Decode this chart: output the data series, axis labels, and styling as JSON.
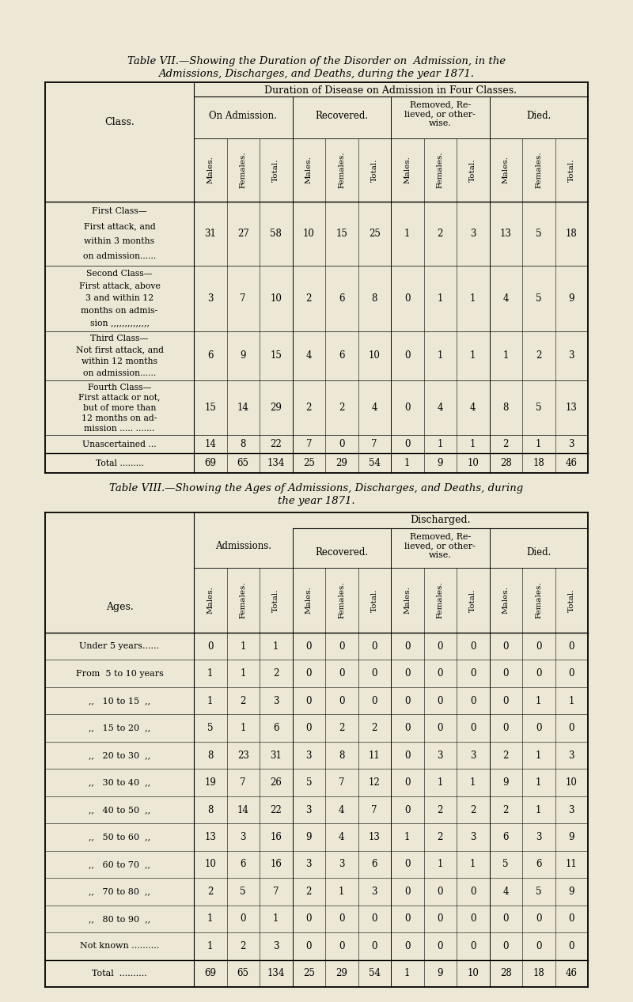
{
  "bg_color": "#ede8d5",
  "table7_title_line1": "Table VII.—Showing the Duration of the Disorder on  Admission, in the",
  "table7_title_line2": "Admissions, Discharges, and Deaths, during the year 1871.",
  "table8_title_line1": "Table VIII.—Showing the Ages of Admissions, Discharges, and Deaths, during",
  "table8_title_line2": "the year 1871.",
  "table7_rows": [
    {
      "label_lines": [
        "First Class—",
        "First attack, and",
        "within 3 months",
        "on admission......"
      ],
      "values": [
        31,
        27,
        58,
        10,
        15,
        25,
        1,
        2,
        3,
        13,
        5,
        18
      ]
    },
    {
      "label_lines": [
        "Second Class—",
        "First attack, above",
        "3 and within 12",
        "months on admis-",
        "sion ,,,,,,,,,,,,,,"
      ],
      "values": [
        3,
        7,
        10,
        2,
        6,
        8,
        0,
        1,
        1,
        4,
        5,
        9
      ]
    },
    {
      "label_lines": [
        "Third Class—",
        "Not first attack, and",
        "within 12 months",
        "on admission......"
      ],
      "values": [
        6,
        9,
        15,
        4,
        6,
        10,
        0,
        1,
        1,
        1,
        2,
        3
      ]
    },
    {
      "label_lines": [
        "Fourth Class—",
        "First attack or not,",
        "but of more than",
        "12 months on ad-",
        "mission ..... ......."
      ],
      "values": [
        15,
        14,
        29,
        2,
        2,
        4,
        0,
        4,
        4,
        8,
        5,
        13
      ]
    },
    {
      "label_lines": [
        "Unascertained ..."
      ],
      "values": [
        14,
        8,
        22,
        7,
        0,
        7,
        0,
        1,
        1,
        2,
        1,
        3
      ]
    },
    {
      "label_lines": [
        "Total ........."
      ],
      "values": [
        69,
        65,
        134,
        25,
        29,
        54,
        1,
        9,
        10,
        28,
        18,
        46
      ],
      "is_total": true
    }
  ],
  "table8_rows": [
    {
      "label": "Under 5 years......",
      "values": [
        0,
        1,
        1,
        0,
        0,
        0,
        0,
        0,
        0,
        0,
        0,
        0
      ]
    },
    {
      "label": "From  5 to 10 years",
      "values": [
        1,
        1,
        2,
        0,
        0,
        0,
        0,
        0,
        0,
        0,
        0,
        0
      ]
    },
    {
      "label": ",,   10 to 15  ,,",
      "values": [
        1,
        2,
        3,
        0,
        0,
        0,
        0,
        0,
        0,
        0,
        1,
        1
      ]
    },
    {
      "label": ",,   15 to 20  ,,",
      "values": [
        5,
        1,
        6,
        0,
        2,
        2,
        0,
        0,
        0,
        0,
        0,
        0
      ]
    },
    {
      "label": ",,   20 to 30  ,,",
      "values": [
        8,
        23,
        31,
        3,
        8,
        11,
        0,
        3,
        3,
        2,
        1,
        3
      ]
    },
    {
      "label": ",,   30 to 40  ,,",
      "values": [
        19,
        7,
        26,
        5,
        7,
        12,
        0,
        1,
        1,
        9,
        1,
        10
      ]
    },
    {
      "label": ",,   40 to 50  ,,",
      "values": [
        8,
        14,
        22,
        3,
        4,
        7,
        0,
        2,
        2,
        2,
        1,
        3
      ]
    },
    {
      "label": ",,   50 to 60  ,,",
      "values": [
        13,
        3,
        16,
        9,
        4,
        13,
        1,
        2,
        3,
        6,
        3,
        9
      ]
    },
    {
      "label": ",,   60 to 70  ,,",
      "values": [
        10,
        6,
        16,
        3,
        3,
        6,
        0,
        1,
        1,
        5,
        6,
        11
      ]
    },
    {
      "label": ",,   70 to 80  ,,",
      "values": [
        2,
        5,
        7,
        2,
        1,
        3,
        0,
        0,
        0,
        4,
        5,
        9
      ]
    },
    {
      "label": ",,   80 to 90  ,,",
      "values": [
        1,
        0,
        1,
        0,
        0,
        0,
        0,
        0,
        0,
        0,
        0,
        0
      ]
    },
    {
      "label": "Not known ..........",
      "values": [
        1,
        2,
        3,
        0,
        0,
        0,
        0,
        0,
        0,
        0,
        0,
        0
      ]
    },
    {
      "label": "Total  ..........",
      "values": [
        69,
        65,
        134,
        25,
        29,
        54,
        1,
        9,
        10,
        28,
        18,
        46
      ],
      "is_total": true
    }
  ]
}
